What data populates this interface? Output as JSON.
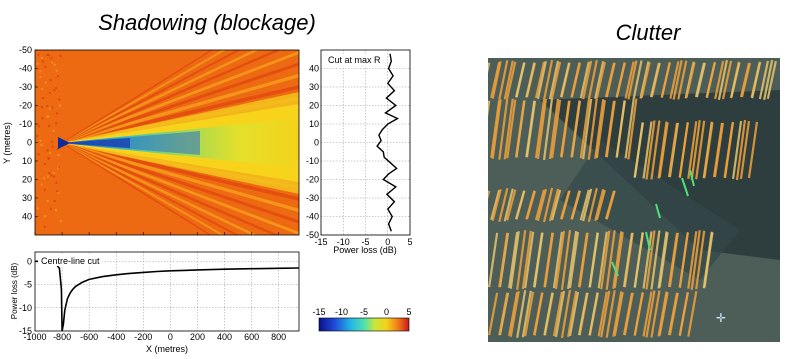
{
  "left_title": "Shadowing (blockage)",
  "right_title": "Clutter",
  "chart_data": [
    {
      "type": "heatmap",
      "title": "",
      "xlabel": "",
      "ylabel": "Y (metres)",
      "xlim": [
        -1000,
        950
      ],
      "ylim": [
        -50,
        50
      ],
      "y_reversed": true,
      "x_ticks": [
        -1000,
        -800,
        -600,
        -400,
        -200,
        0,
        200,
        400,
        600,
        800
      ],
      "y_ticks": [
        -50,
        -40,
        -30,
        -20,
        -10,
        0,
        10,
        20,
        30,
        40
      ],
      "x_tick_labels": [
        "-1000",
        "-800",
        "-600",
        "-400",
        "-200",
        "0",
        "200",
        "400",
        "600",
        "800"
      ],
      "y_tick_labels": [
        "-50",
        "-40",
        "-30",
        "-20",
        "-10",
        "0",
        "10",
        "20",
        "30",
        "40"
      ],
      "obstacle_x": -800,
      "description_values": "Power loss (dB) field; shadow cone behind obstacle at x=-800, y=0 with values down to about -15 dB, surrounding diffraction fringes near 0 dB"
    },
    {
      "type": "line",
      "title": "Cut at max R",
      "xlabel": "Power loss (dB)",
      "ylabel": "",
      "xlim": [
        -15,
        5
      ],
      "ylim": [
        -50,
        50
      ],
      "x_ticks": [
        -15,
        -10,
        -5,
        0,
        5
      ],
      "x_tick_labels": [
        "-15",
        "-10",
        "-5",
        "0",
        "5"
      ],
      "y_ticks": [
        40,
        30,
        20,
        10,
        0,
        -10,
        -20,
        -30,
        -40,
        -50
      ],
      "y_tick_labels": [
        "40",
        "30",
        "20",
        "10",
        "0",
        "-10",
        "-20",
        "-30",
        "-40",
        "-50"
      ],
      "series": [
        {
          "y": [
            48,
            44,
            40,
            36,
            32,
            28,
            24,
            20,
            16,
            13,
            10,
            7,
            4,
            1,
            -2,
            -5,
            -8,
            -11,
            -14,
            -17,
            -20,
            -24,
            -28,
            -32,
            -36,
            -40,
            -44,
            -48
          ],
          "x": [
            0.5,
            0.8,
            0.2,
            1.2,
            0.0,
            1.5,
            -0.3,
            1.8,
            -0.5,
            2.2,
            0.0,
            -1.2,
            -2.0,
            -1.5,
            -2.4,
            -1.0,
            -0.8,
            0.6,
            2.0,
            0.2,
            -1.0,
            1.8,
            -0.2,
            1.5,
            0.0,
            1.0,
            0.2,
            0.8
          ]
        }
      ]
    },
    {
      "type": "line",
      "title": "Centre-line cut",
      "xlabel": "X (metres)",
      "ylabel": "Power loss (dB)",
      "xlim": [
        -1000,
        950
      ],
      "ylim": [
        -15,
        2
      ],
      "x_ticks": [
        -1000,
        -800,
        -600,
        -400,
        -200,
        0,
        200,
        400,
        600,
        800
      ],
      "x_tick_labels": [
        "-1000",
        "-800",
        "-600",
        "-400",
        "-200",
        "0",
        "200",
        "400",
        "600",
        "800"
      ],
      "y_ticks": [
        0,
        -5,
        -10,
        -15
      ],
      "y_tick_labels": [
        "0",
        "-5",
        "-10",
        "-15"
      ],
      "series": [
        {
          "x": [
            -1000,
            -950,
            -900,
            -850,
            -820,
            -805,
            -800,
            -790,
            -780,
            -760,
            -740,
            -720,
            -700,
            -650,
            -600,
            -500,
            -400,
            -300,
            -200,
            -100,
            0,
            100,
            200,
            400,
            600,
            800,
            950
          ],
          "y": [
            0.0,
            0.0,
            -0.1,
            -0.4,
            -1.5,
            -6.0,
            -15.0,
            -13.5,
            -10.5,
            -8.0,
            -6.8,
            -6.0,
            -5.4,
            -4.5,
            -3.9,
            -3.3,
            -2.9,
            -2.6,
            -2.4,
            -2.2,
            -2.05,
            -1.95,
            -1.85,
            -1.7,
            -1.6,
            -1.5,
            -1.45
          ]
        }
      ]
    },
    {
      "type": "colorbar",
      "range": [
        -15,
        5
      ],
      "ticks": [
        -15,
        -10,
        -5,
        0,
        5
      ],
      "tick_labels": [
        "-15",
        "-10",
        "-5",
        "0",
        "5"
      ]
    }
  ],
  "colors": {
    "heat_bg": "#ed6a12",
    "fringe_light": "#f7a51f",
    "shadow_core": "#2fb6c8",
    "obstacle": "#0c2c9c",
    "clutter_bg": "#3f5450",
    "clutter_stripe": "#f2a23a",
    "clutter_green": "#4fe07a"
  }
}
